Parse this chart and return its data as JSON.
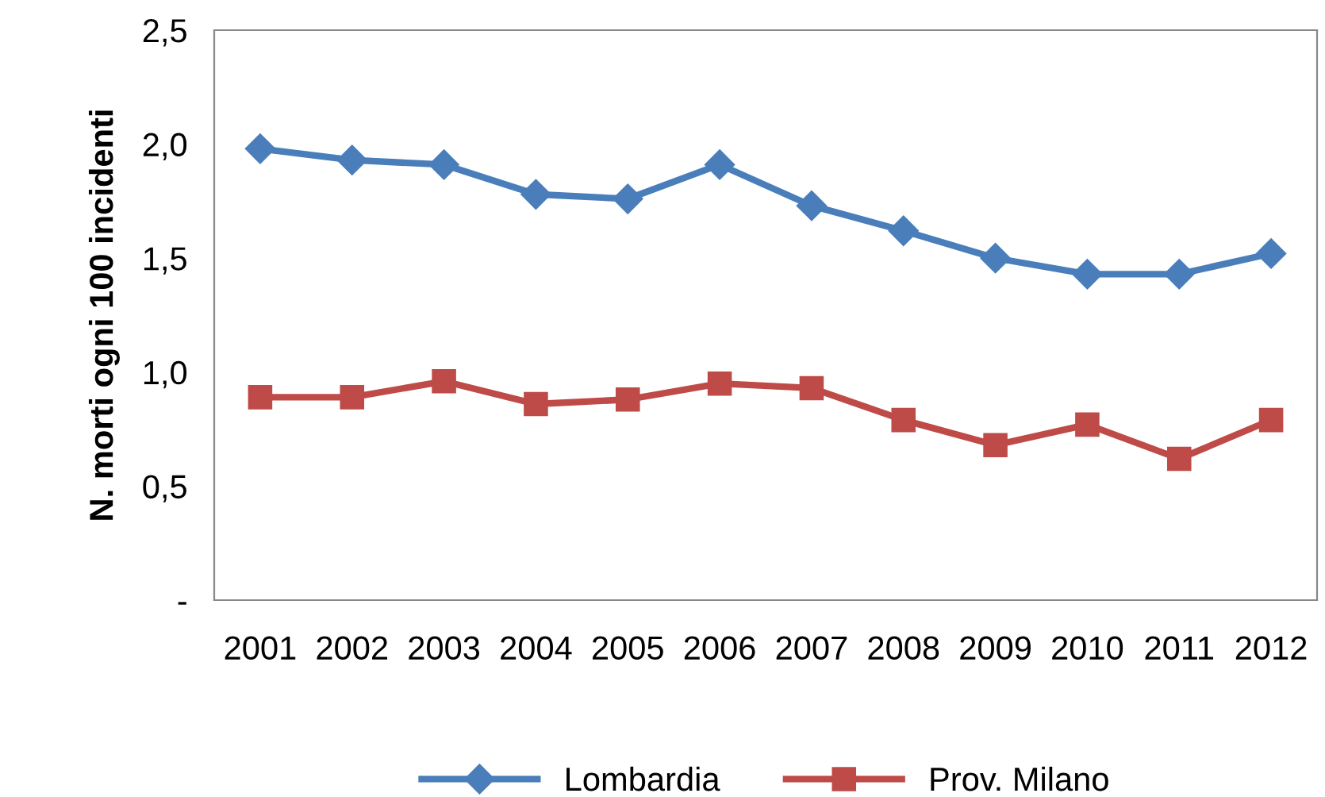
{
  "chart_data": {
    "type": "line",
    "ylabel": "N. morti ogni 100 incidenti",
    "categories": [
      "2001",
      "2002",
      "2003",
      "2004",
      "2005",
      "2006",
      "2007",
      "2008",
      "2009",
      "2010",
      "2011",
      "2012"
    ],
    "series": [
      {
        "name": "Lombardia",
        "color": "#4a7ebb",
        "marker": "diamond",
        "values": [
          1.98,
          1.93,
          1.91,
          1.78,
          1.76,
          1.91,
          1.73,
          1.62,
          1.5,
          1.43,
          1.43,
          1.52
        ]
      },
      {
        "name": "Prov. Milano",
        "color": "#be4b48",
        "marker": "square",
        "values": [
          0.89,
          0.89,
          0.96,
          0.86,
          0.88,
          0.95,
          0.93,
          0.79,
          0.68,
          0.77,
          0.62,
          0.79
        ]
      }
    ],
    "ylim": [
      0,
      2.5
    ],
    "yticks": [
      {
        "value": 0,
        "label": "-"
      },
      {
        "value": 0.5,
        "label": "0,5"
      },
      {
        "value": 1.0,
        "label": "1,0"
      },
      {
        "value": 1.5,
        "label": "1,5"
      },
      {
        "value": 2.0,
        "label": "2,0"
      },
      {
        "value": 2.5,
        "label": "2,5"
      }
    ],
    "grid": false,
    "legend": "bottom",
    "line_style": "solid"
  }
}
